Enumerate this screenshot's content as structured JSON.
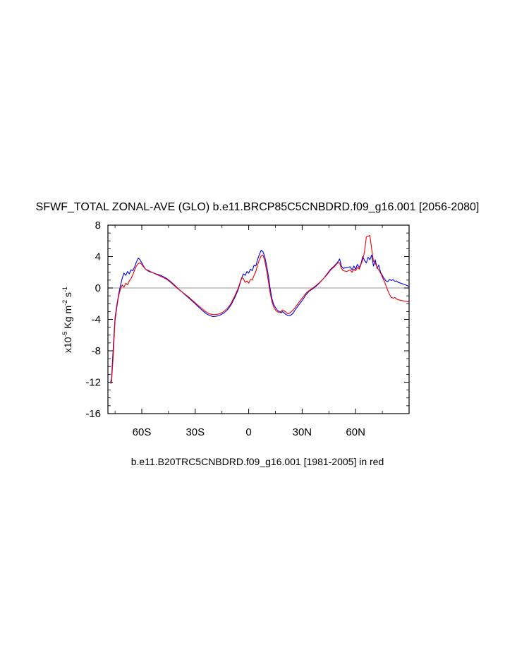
{
  "chart_data": {
    "type": "line",
    "title": "SFWF_TOTAL ZONAL-AVE (GLO) b.e11.BRCP85C5CNBDRD.f09_g16.001 [2056-2080]",
    "footer": "b.e11.B20TRC5CNBDRD.f09_g16.001 [1981-2005] in red",
    "ylabel": {
      "prefix": "x10",
      "exp": "-5",
      "unit1": " Kg m",
      "exp2": "-2",
      "unit2": " s",
      "exp3": "-1"
    },
    "xlim": [
      -79,
      90
    ],
    "ylim": [
      -16,
      8
    ],
    "xticks": [
      {
        "value": -60,
        "label": "60S"
      },
      {
        "value": -30,
        "label": "30S"
      },
      {
        "value": 0,
        "label": "0"
      },
      {
        "value": 30,
        "label": "30N"
      },
      {
        "value": 60,
        "label": "60N"
      }
    ],
    "yticks": [
      {
        "value": 8,
        "label": "8"
      },
      {
        "value": 4,
        "label": "4"
      },
      {
        "value": 0,
        "label": "0"
      },
      {
        "value": -4,
        "label": "-4"
      },
      {
        "value": -8,
        "label": "-8"
      },
      {
        "value": -12,
        "label": "-12"
      },
      {
        "value": -16,
        "label": "-16"
      }
    ],
    "zero_line": 0,
    "series": [
      {
        "name": "b.e11.BRCP85C5CNBDRD.f09_g16.001 [2056-2080]",
        "color": "#0000ee",
        "points": [
          [
            -77.5,
            -12.0
          ],
          [
            -77,
            -11.6
          ],
          [
            -76,
            -7.5
          ],
          [
            -75,
            -3.8
          ],
          [
            -74,
            -2.2
          ],
          [
            -73,
            -0.8
          ],
          [
            -72,
            0.3
          ],
          [
            -71,
            1.2
          ],
          [
            -70,
            1.9
          ],
          [
            -69,
            1.6
          ],
          [
            -68,
            2.1
          ],
          [
            -67,
            1.8
          ],
          [
            -66,
            2.3
          ],
          [
            -65,
            2.2
          ],
          [
            -64,
            2.7
          ],
          [
            -63,
            3.3
          ],
          [
            -62,
            3.8
          ],
          [
            -61,
            3.6
          ],
          [
            -60,
            3.2
          ],
          [
            -59,
            2.8
          ],
          [
            -58,
            2.4
          ],
          [
            -56,
            2.1
          ],
          [
            -54,
            1.95
          ],
          [
            -52,
            1.8
          ],
          [
            -50,
            1.65
          ],
          [
            -48,
            1.45
          ],
          [
            -46,
            1.2
          ],
          [
            -44,
            0.85
          ],
          [
            -42,
            0.45
          ],
          [
            -40,
            0.0
          ],
          [
            -38,
            -0.4
          ],
          [
            -36,
            -0.8
          ],
          [
            -34,
            -1.2
          ],
          [
            -32,
            -1.6
          ],
          [
            -30,
            -2.0
          ],
          [
            -28,
            -2.45
          ],
          [
            -26,
            -2.85
          ],
          [
            -24,
            -3.25
          ],
          [
            -22,
            -3.5
          ],
          [
            -20,
            -3.65
          ],
          [
            -18,
            -3.6
          ],
          [
            -16,
            -3.45
          ],
          [
            -14,
            -3.2
          ],
          [
            -12,
            -2.8
          ],
          [
            -10,
            -2.2
          ],
          [
            -8,
            -1.3
          ],
          [
            -6,
            -0.3
          ],
          [
            -5,
            0.5
          ],
          [
            -4,
            1.2
          ],
          [
            -3,
            1.8
          ],
          [
            -2,
            1.6
          ],
          [
            -1,
            2.1
          ],
          [
            0,
            1.9
          ],
          [
            1,
            2.4
          ],
          [
            2,
            2.2
          ],
          [
            3,
            2.9
          ],
          [
            4,
            2.8
          ],
          [
            5,
            3.6
          ],
          [
            6,
            4.3
          ],
          [
            7,
            4.8
          ],
          [
            8,
            4.6
          ],
          [
            9,
            4.0
          ],
          [
            10,
            2.9
          ],
          [
            11,
            1.6
          ],
          [
            12,
            0.0
          ],
          [
            13,
            -1.3
          ],
          [
            14,
            -2.1
          ],
          [
            15,
            -2.5
          ],
          [
            16,
            -2.8
          ],
          [
            17,
            -3.0
          ],
          [
            18,
            -3.15
          ],
          [
            19,
            -3.0
          ],
          [
            20,
            -3.2
          ],
          [
            21,
            -3.4
          ],
          [
            22,
            -3.5
          ],
          [
            23,
            -3.55
          ],
          [
            24,
            -3.4
          ],
          [
            25,
            -3.2
          ],
          [
            26,
            -2.8
          ],
          [
            28,
            -2.2
          ],
          [
            30,
            -1.6
          ],
          [
            32,
            -0.9
          ],
          [
            34,
            -0.4
          ],
          [
            36,
            -0.1
          ],
          [
            38,
            0.25
          ],
          [
            40,
            0.7
          ],
          [
            42,
            1.2
          ],
          [
            44,
            1.8
          ],
          [
            46,
            2.4
          ],
          [
            48,
            2.8
          ],
          [
            50,
            3.3
          ],
          [
            51,
            3.7
          ],
          [
            52,
            2.8
          ],
          [
            53,
            2.5
          ],
          [
            55,
            2.6
          ],
          [
            57,
            2.7
          ],
          [
            58,
            2.3
          ],
          [
            59,
            2.8
          ],
          [
            60,
            2.4
          ],
          [
            61,
            3.0
          ],
          [
            62,
            2.6
          ],
          [
            63,
            3.1
          ],
          [
            64,
            4.0
          ],
          [
            65,
            3.5
          ],
          [
            66,
            3.2
          ],
          [
            67,
            3.9
          ],
          [
            68,
            3.6
          ],
          [
            69,
            4.2
          ],
          [
            70,
            2.8
          ],
          [
            71,
            3.6
          ],
          [
            72,
            2.5
          ],
          [
            73,
            2.9
          ],
          [
            74,
            2.0
          ],
          [
            75,
            1.6
          ],
          [
            76,
            1.2
          ],
          [
            77,
            0.9
          ],
          [
            78,
            0.8
          ],
          [
            79,
            1.1
          ],
          [
            80,
            0.95
          ],
          [
            81,
            1.05
          ],
          [
            82,
            0.85
          ],
          [
            83,
            0.9
          ],
          [
            84,
            0.7
          ],
          [
            86,
            0.55
          ],
          [
            88,
            0.4
          ],
          [
            90,
            0.2
          ]
        ]
      },
      {
        "name": "b.e11.B20TRC5CNBDRD.f09_g16.001 [1981-2005]",
        "color": "#ee0000",
        "points": [
          [
            -77.5,
            -12.2
          ],
          [
            -77,
            -12.0
          ],
          [
            -76,
            -8.5
          ],
          [
            -75,
            -4.2
          ],
          [
            -74,
            -2.5
          ],
          [
            -73,
            -1.0
          ],
          [
            -72,
            -0.2
          ],
          [
            -71,
            0.4
          ],
          [
            -70,
            0.1
          ],
          [
            -69,
            0.6
          ],
          [
            -68,
            0.4
          ],
          [
            -67,
            0.9
          ],
          [
            -66,
            1.2
          ],
          [
            -65,
            1.7
          ],
          [
            -64,
            2.3
          ],
          [
            -63,
            2.8
          ],
          [
            -62,
            3.1
          ],
          [
            -61,
            3.2
          ],
          [
            -60,
            3.0
          ],
          [
            -59,
            2.7
          ],
          [
            -58,
            2.4
          ],
          [
            -56,
            2.2
          ],
          [
            -54,
            1.95
          ],
          [
            -52,
            1.75
          ],
          [
            -50,
            1.55
          ],
          [
            -48,
            1.35
          ],
          [
            -46,
            1.1
          ],
          [
            -44,
            0.75
          ],
          [
            -42,
            0.35
          ],
          [
            -40,
            -0.05
          ],
          [
            -38,
            -0.4
          ],
          [
            -36,
            -0.75
          ],
          [
            -34,
            -1.1
          ],
          [
            -32,
            -1.5
          ],
          [
            -30,
            -1.9
          ],
          [
            -28,
            -2.3
          ],
          [
            -26,
            -2.65
          ],
          [
            -24,
            -3.05
          ],
          [
            -22,
            -3.3
          ],
          [
            -20,
            -3.4
          ],
          [
            -18,
            -3.38
          ],
          [
            -16,
            -3.25
          ],
          [
            -14,
            -3.0
          ],
          [
            -12,
            -2.6
          ],
          [
            -10,
            -2.0
          ],
          [
            -8,
            -1.1
          ],
          [
            -6,
            -0.1
          ],
          [
            -5,
            0.6
          ],
          [
            -4,
            1.3
          ],
          [
            -3,
            1.2
          ],
          [
            -2,
            0.7
          ],
          [
            -1,
            0.9
          ],
          [
            0,
            0.6
          ],
          [
            1,
            1.1
          ],
          [
            2,
            1.0
          ],
          [
            3,
            1.6
          ],
          [
            4,
            2.1
          ],
          [
            5,
            2.9
          ],
          [
            6,
            3.6
          ],
          [
            7,
            4.1
          ],
          [
            8,
            4.2
          ],
          [
            9,
            3.5
          ],
          [
            10,
            2.3
          ],
          [
            11,
            0.9
          ],
          [
            12,
            -0.6
          ],
          [
            13,
            -1.7
          ],
          [
            14,
            -2.4
          ],
          [
            15,
            -2.8
          ],
          [
            16,
            -3.0
          ],
          [
            17,
            -3.1
          ],
          [
            18,
            -3.0
          ],
          [
            19,
            -2.8
          ],
          [
            20,
            -2.9
          ],
          [
            21,
            -3.1
          ],
          [
            22,
            -3.3
          ],
          [
            23,
            -3.2
          ],
          [
            24,
            -3.0
          ],
          [
            25,
            -2.8
          ],
          [
            26,
            -2.5
          ],
          [
            28,
            -1.9
          ],
          [
            30,
            -1.3
          ],
          [
            32,
            -0.7
          ],
          [
            34,
            -0.3
          ],
          [
            36,
            0.0
          ],
          [
            38,
            0.35
          ],
          [
            40,
            0.75
          ],
          [
            42,
            1.2
          ],
          [
            44,
            1.7
          ],
          [
            46,
            2.3
          ],
          [
            48,
            2.7
          ],
          [
            50,
            3.2
          ],
          [
            51,
            3.2
          ],
          [
            52,
            2.5
          ],
          [
            53,
            2.2
          ],
          [
            55,
            2.1
          ],
          [
            57,
            2.3
          ],
          [
            58,
            2.0
          ],
          [
            59,
            2.4
          ],
          [
            60,
            2.2
          ],
          [
            61,
            2.6
          ],
          [
            62,
            2.4
          ],
          [
            63,
            3.0
          ],
          [
            64,
            3.6
          ],
          [
            65,
            4.6
          ],
          [
            66,
            6.5
          ],
          [
            67,
            6.6
          ],
          [
            68,
            6.7
          ],
          [
            69,
            5.0
          ],
          [
            70,
            3.4
          ],
          [
            71,
            3.2
          ],
          [
            72,
            2.6
          ],
          [
            73,
            2.3
          ],
          [
            74,
            1.9
          ],
          [
            75,
            1.4
          ],
          [
            76,
            0.9
          ],
          [
            77,
            0.3
          ],
          [
            78,
            -0.3
          ],
          [
            79,
            -0.8
          ],
          [
            80,
            -1.2
          ],
          [
            81,
            -1.3
          ],
          [
            82,
            -1.2
          ],
          [
            83,
            -1.4
          ],
          [
            84,
            -1.5
          ],
          [
            86,
            -1.6
          ],
          [
            88,
            -1.7
          ],
          [
            90,
            -1.75
          ]
        ]
      }
    ]
  }
}
